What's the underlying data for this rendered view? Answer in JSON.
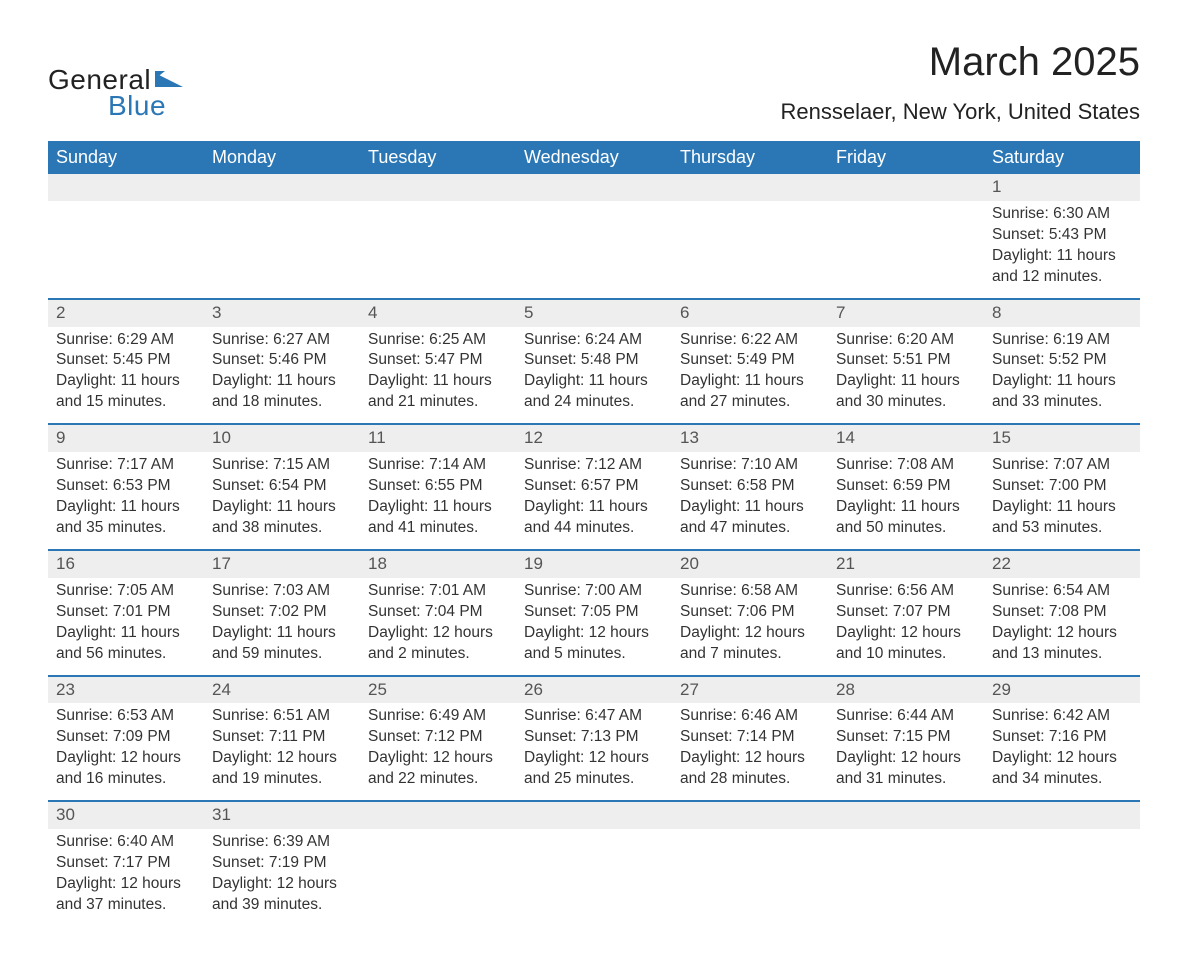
{
  "logo": {
    "text1": "General",
    "text2": "Blue",
    "iconColor": "#2b77b5"
  },
  "title": "March 2025",
  "location": "Rensselaer, New York, United States",
  "colors": {
    "headerBg": "#2b77b5",
    "headerText": "#ffffff",
    "dayStripBg": "#eeeeee",
    "rowBorder": "#2b77b5",
    "bodyText": "#333333"
  },
  "weekdays": [
    "Sunday",
    "Monday",
    "Tuesday",
    "Wednesday",
    "Thursday",
    "Friday",
    "Saturday"
  ],
  "weeks": [
    {
      "nums": [
        "",
        "",
        "",
        "",
        "",
        "",
        "1"
      ],
      "cells": [
        "",
        "",
        "",
        "",
        "",
        "",
        "Sunrise: 6:30 AM\nSunset: 5:43 PM\nDaylight: 11 hours and 12 minutes."
      ]
    },
    {
      "nums": [
        "2",
        "3",
        "4",
        "5",
        "6",
        "7",
        "8"
      ],
      "cells": [
        "Sunrise: 6:29 AM\nSunset: 5:45 PM\nDaylight: 11 hours and 15 minutes.",
        "Sunrise: 6:27 AM\nSunset: 5:46 PM\nDaylight: 11 hours and 18 minutes.",
        "Sunrise: 6:25 AM\nSunset: 5:47 PM\nDaylight: 11 hours and 21 minutes.",
        "Sunrise: 6:24 AM\nSunset: 5:48 PM\nDaylight: 11 hours and 24 minutes.",
        "Sunrise: 6:22 AM\nSunset: 5:49 PM\nDaylight: 11 hours and 27 minutes.",
        "Sunrise: 6:20 AM\nSunset: 5:51 PM\nDaylight: 11 hours and 30 minutes.",
        "Sunrise: 6:19 AM\nSunset: 5:52 PM\nDaylight: 11 hours and 33 minutes."
      ]
    },
    {
      "nums": [
        "9",
        "10",
        "11",
        "12",
        "13",
        "14",
        "15"
      ],
      "cells": [
        "Sunrise: 7:17 AM\nSunset: 6:53 PM\nDaylight: 11 hours and 35 minutes.",
        "Sunrise: 7:15 AM\nSunset: 6:54 PM\nDaylight: 11 hours and 38 minutes.",
        "Sunrise: 7:14 AM\nSunset: 6:55 PM\nDaylight: 11 hours and 41 minutes.",
        "Sunrise: 7:12 AM\nSunset: 6:57 PM\nDaylight: 11 hours and 44 minutes.",
        "Sunrise: 7:10 AM\nSunset: 6:58 PM\nDaylight: 11 hours and 47 minutes.",
        "Sunrise: 7:08 AM\nSunset: 6:59 PM\nDaylight: 11 hours and 50 minutes.",
        "Sunrise: 7:07 AM\nSunset: 7:00 PM\nDaylight: 11 hours and 53 minutes."
      ]
    },
    {
      "nums": [
        "16",
        "17",
        "18",
        "19",
        "20",
        "21",
        "22"
      ],
      "cells": [
        "Sunrise: 7:05 AM\nSunset: 7:01 PM\nDaylight: 11 hours and 56 minutes.",
        "Sunrise: 7:03 AM\nSunset: 7:02 PM\nDaylight: 11 hours and 59 minutes.",
        "Sunrise: 7:01 AM\nSunset: 7:04 PM\nDaylight: 12 hours and 2 minutes.",
        "Sunrise: 7:00 AM\nSunset: 7:05 PM\nDaylight: 12 hours and 5 minutes.",
        "Sunrise: 6:58 AM\nSunset: 7:06 PM\nDaylight: 12 hours and 7 minutes.",
        "Sunrise: 6:56 AM\nSunset: 7:07 PM\nDaylight: 12 hours and 10 minutes.",
        "Sunrise: 6:54 AM\nSunset: 7:08 PM\nDaylight: 12 hours and 13 minutes."
      ]
    },
    {
      "nums": [
        "23",
        "24",
        "25",
        "26",
        "27",
        "28",
        "29"
      ],
      "cells": [
        "Sunrise: 6:53 AM\nSunset: 7:09 PM\nDaylight: 12 hours and 16 minutes.",
        "Sunrise: 6:51 AM\nSunset: 7:11 PM\nDaylight: 12 hours and 19 minutes.",
        "Sunrise: 6:49 AM\nSunset: 7:12 PM\nDaylight: 12 hours and 22 minutes.",
        "Sunrise: 6:47 AM\nSunset: 7:13 PM\nDaylight: 12 hours and 25 minutes.",
        "Sunrise: 6:46 AM\nSunset: 7:14 PM\nDaylight: 12 hours and 28 minutes.",
        "Sunrise: 6:44 AM\nSunset: 7:15 PM\nDaylight: 12 hours and 31 minutes.",
        "Sunrise: 6:42 AM\nSunset: 7:16 PM\nDaylight: 12 hours and 34 minutes."
      ]
    },
    {
      "nums": [
        "30",
        "31",
        "",
        "",
        "",
        "",
        ""
      ],
      "cells": [
        "Sunrise: 6:40 AM\nSunset: 7:17 PM\nDaylight: 12 hours and 37 minutes.",
        "Sunrise: 6:39 AM\nSunset: 7:19 PM\nDaylight: 12 hours and 39 minutes.",
        "",
        "",
        "",
        "",
        ""
      ]
    }
  ]
}
